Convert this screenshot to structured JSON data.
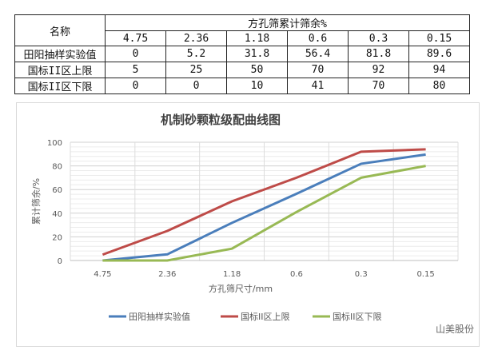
{
  "table": {
    "name_header": "名称",
    "group_header": "方孔筛累计筛余%",
    "sieve_sizes": [
      "4.75",
      "2.36",
      "1.18",
      "0.6",
      "0.3",
      "0.15"
    ],
    "rows": [
      {
        "label": "田阳抽样实验值",
        "values": [
          "0",
          "5.2",
          "31.8",
          "56.4",
          "81.8",
          "89.6"
        ]
      },
      {
        "label": "国标II区上限",
        "values": [
          "5",
          "25",
          "50",
          "70",
          "92",
          "94"
        ]
      },
      {
        "label": "国标II区下限",
        "values": [
          "0",
          "0",
          "10",
          "41",
          "70",
          "80"
        ]
      }
    ]
  },
  "chart_data": {
    "type": "line",
    "title": "机制砂颗粒级配曲线图",
    "xlabel": "方孔筛尺寸/mm",
    "ylabel": "累计筛余/%",
    "categories": [
      "4.75",
      "2.36",
      "1.18",
      "0.6",
      "0.3",
      "0.15"
    ],
    "ylim": [
      0,
      100
    ],
    "yticks": [
      "0",
      "20",
      "40",
      "60",
      "80",
      "100"
    ],
    "grid": true,
    "legend": "bottom",
    "series": [
      {
        "name": "田阳抽样实验值",
        "values": [
          0,
          5.2,
          31.8,
          56.4,
          81.8,
          89.6
        ],
        "color": "#4a7ebb"
      },
      {
        "name": "国标II区上限",
        "values": [
          5,
          25,
          50,
          70,
          92,
          94
        ],
        "color": "#be4b48"
      },
      {
        "name": "国标II区下限",
        "values": [
          0,
          0,
          10,
          41,
          70,
          80
        ],
        "color": "#98b954"
      }
    ]
  },
  "watermark": "山美股份"
}
